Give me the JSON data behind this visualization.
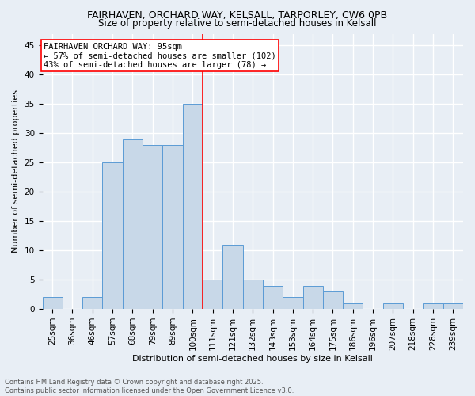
{
  "title1": "FAIRHAVEN, ORCHARD WAY, KELSALL, TARPORLEY, CW6 0PB",
  "title2": "Size of property relative to semi-detached houses in Kelsall",
  "xlabel": "Distribution of semi-detached houses by size in Kelsall",
  "ylabel": "Number of semi-detached properties",
  "footer1": "Contains HM Land Registry data © Crown copyright and database right 2025.",
  "footer2": "Contains public sector information licensed under the Open Government Licence v3.0.",
  "bar_labels": [
    "25sqm",
    "36sqm",
    "46sqm",
    "57sqm",
    "68sqm",
    "79sqm",
    "89sqm",
    "100sqm",
    "111sqm",
    "121sqm",
    "132sqm",
    "143sqm",
    "153sqm",
    "164sqm",
    "175sqm",
    "186sqm",
    "196sqm",
    "207sqm",
    "218sqm",
    "228sqm",
    "239sqm"
  ],
  "bar_values": [
    2,
    0,
    2,
    25,
    29,
    28,
    28,
    35,
    5,
    11,
    5,
    4,
    2,
    4,
    3,
    1,
    0,
    1,
    0,
    1,
    1
  ],
  "bar_color": "#c8d8e8",
  "bar_edge_color": "#5b9bd5",
  "reference_line_x": 7.5,
  "annotation_title": "FAIRHAVEN ORCHARD WAY: 95sqm",
  "annotation_line1": "← 57% of semi-detached houses are smaller (102)",
  "annotation_line2": "43% of semi-detached houses are larger (78) →",
  "ylim": [
    0,
    47
  ],
  "yticks": [
    0,
    5,
    10,
    15,
    20,
    25,
    30,
    35,
    40,
    45
  ],
  "background_color": "#e8eef5",
  "plot_bg_color": "#e8eef5",
  "grid_color": "#ffffff",
  "title_fontsize": 9,
  "subtitle_fontsize": 8.5,
  "axis_label_fontsize": 8,
  "tick_fontsize": 7.5,
  "annotation_fontsize": 7.5,
  "footer_fontsize": 6
}
